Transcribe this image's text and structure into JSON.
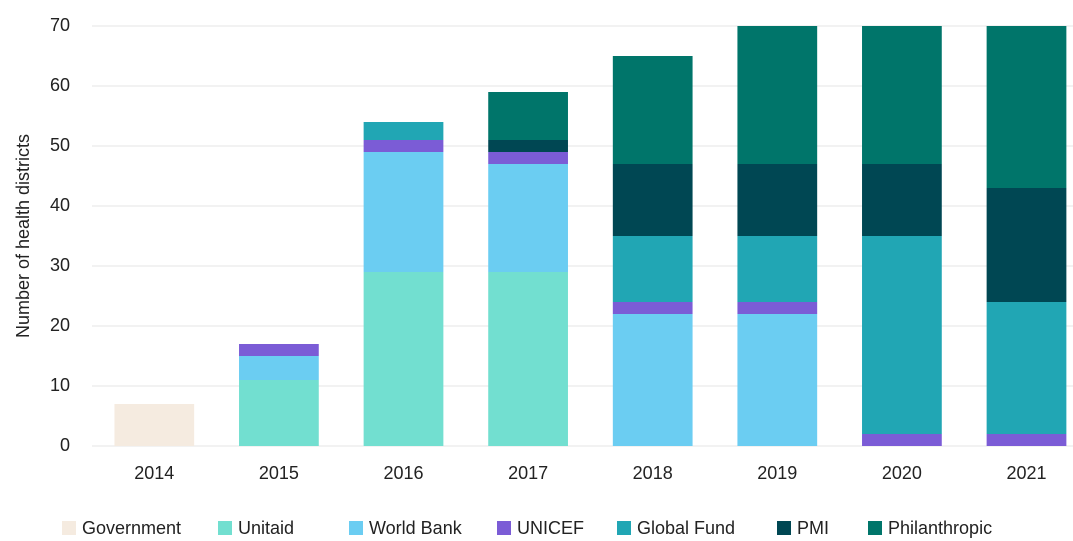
{
  "chart_data": {
    "type": "stacked_bar",
    "ylabel": "Number of health districts",
    "categories": [
      "2014",
      "2015",
      "2016",
      "2017",
      "2018",
      "2019",
      "2020",
      "2021"
    ],
    "series": [
      {
        "name": "Government",
        "color": "#f5ebe0",
        "values": [
          7,
          0,
          0,
          0,
          0,
          0,
          0,
          0
        ]
      },
      {
        "name": "Unitaid",
        "color": "#72dfd0",
        "values": [
          0,
          11,
          29,
          29,
          0,
          0,
          0,
          0
        ]
      },
      {
        "name": "World Bank",
        "color": "#6bcdf2",
        "values": [
          0,
          4,
          20,
          18,
          22,
          22,
          0,
          0
        ]
      },
      {
        "name": "UNICEF",
        "color": "#7b5cd6",
        "values": [
          0,
          2,
          2,
          2,
          2,
          2,
          2,
          2
        ]
      },
      {
        "name": "Global Fund",
        "color": "#21a6b4",
        "values": [
          0,
          0,
          3,
          0,
          11,
          11,
          33,
          22
        ]
      },
      {
        "name": "PMI",
        "color": "#004753",
        "values": [
          0,
          0,
          0,
          2,
          12,
          12,
          12,
          19
        ]
      },
      {
        "name": "Philanthropic",
        "color": "#00756a",
        "values": [
          0,
          0,
          0,
          8,
          18,
          23,
          23,
          27
        ]
      }
    ],
    "ylim": [
      0,
      70
    ],
    "yticks": [
      0,
      10,
      20,
      30,
      40,
      50,
      60,
      70
    ],
    "grid": true,
    "legend": "bottom"
  }
}
